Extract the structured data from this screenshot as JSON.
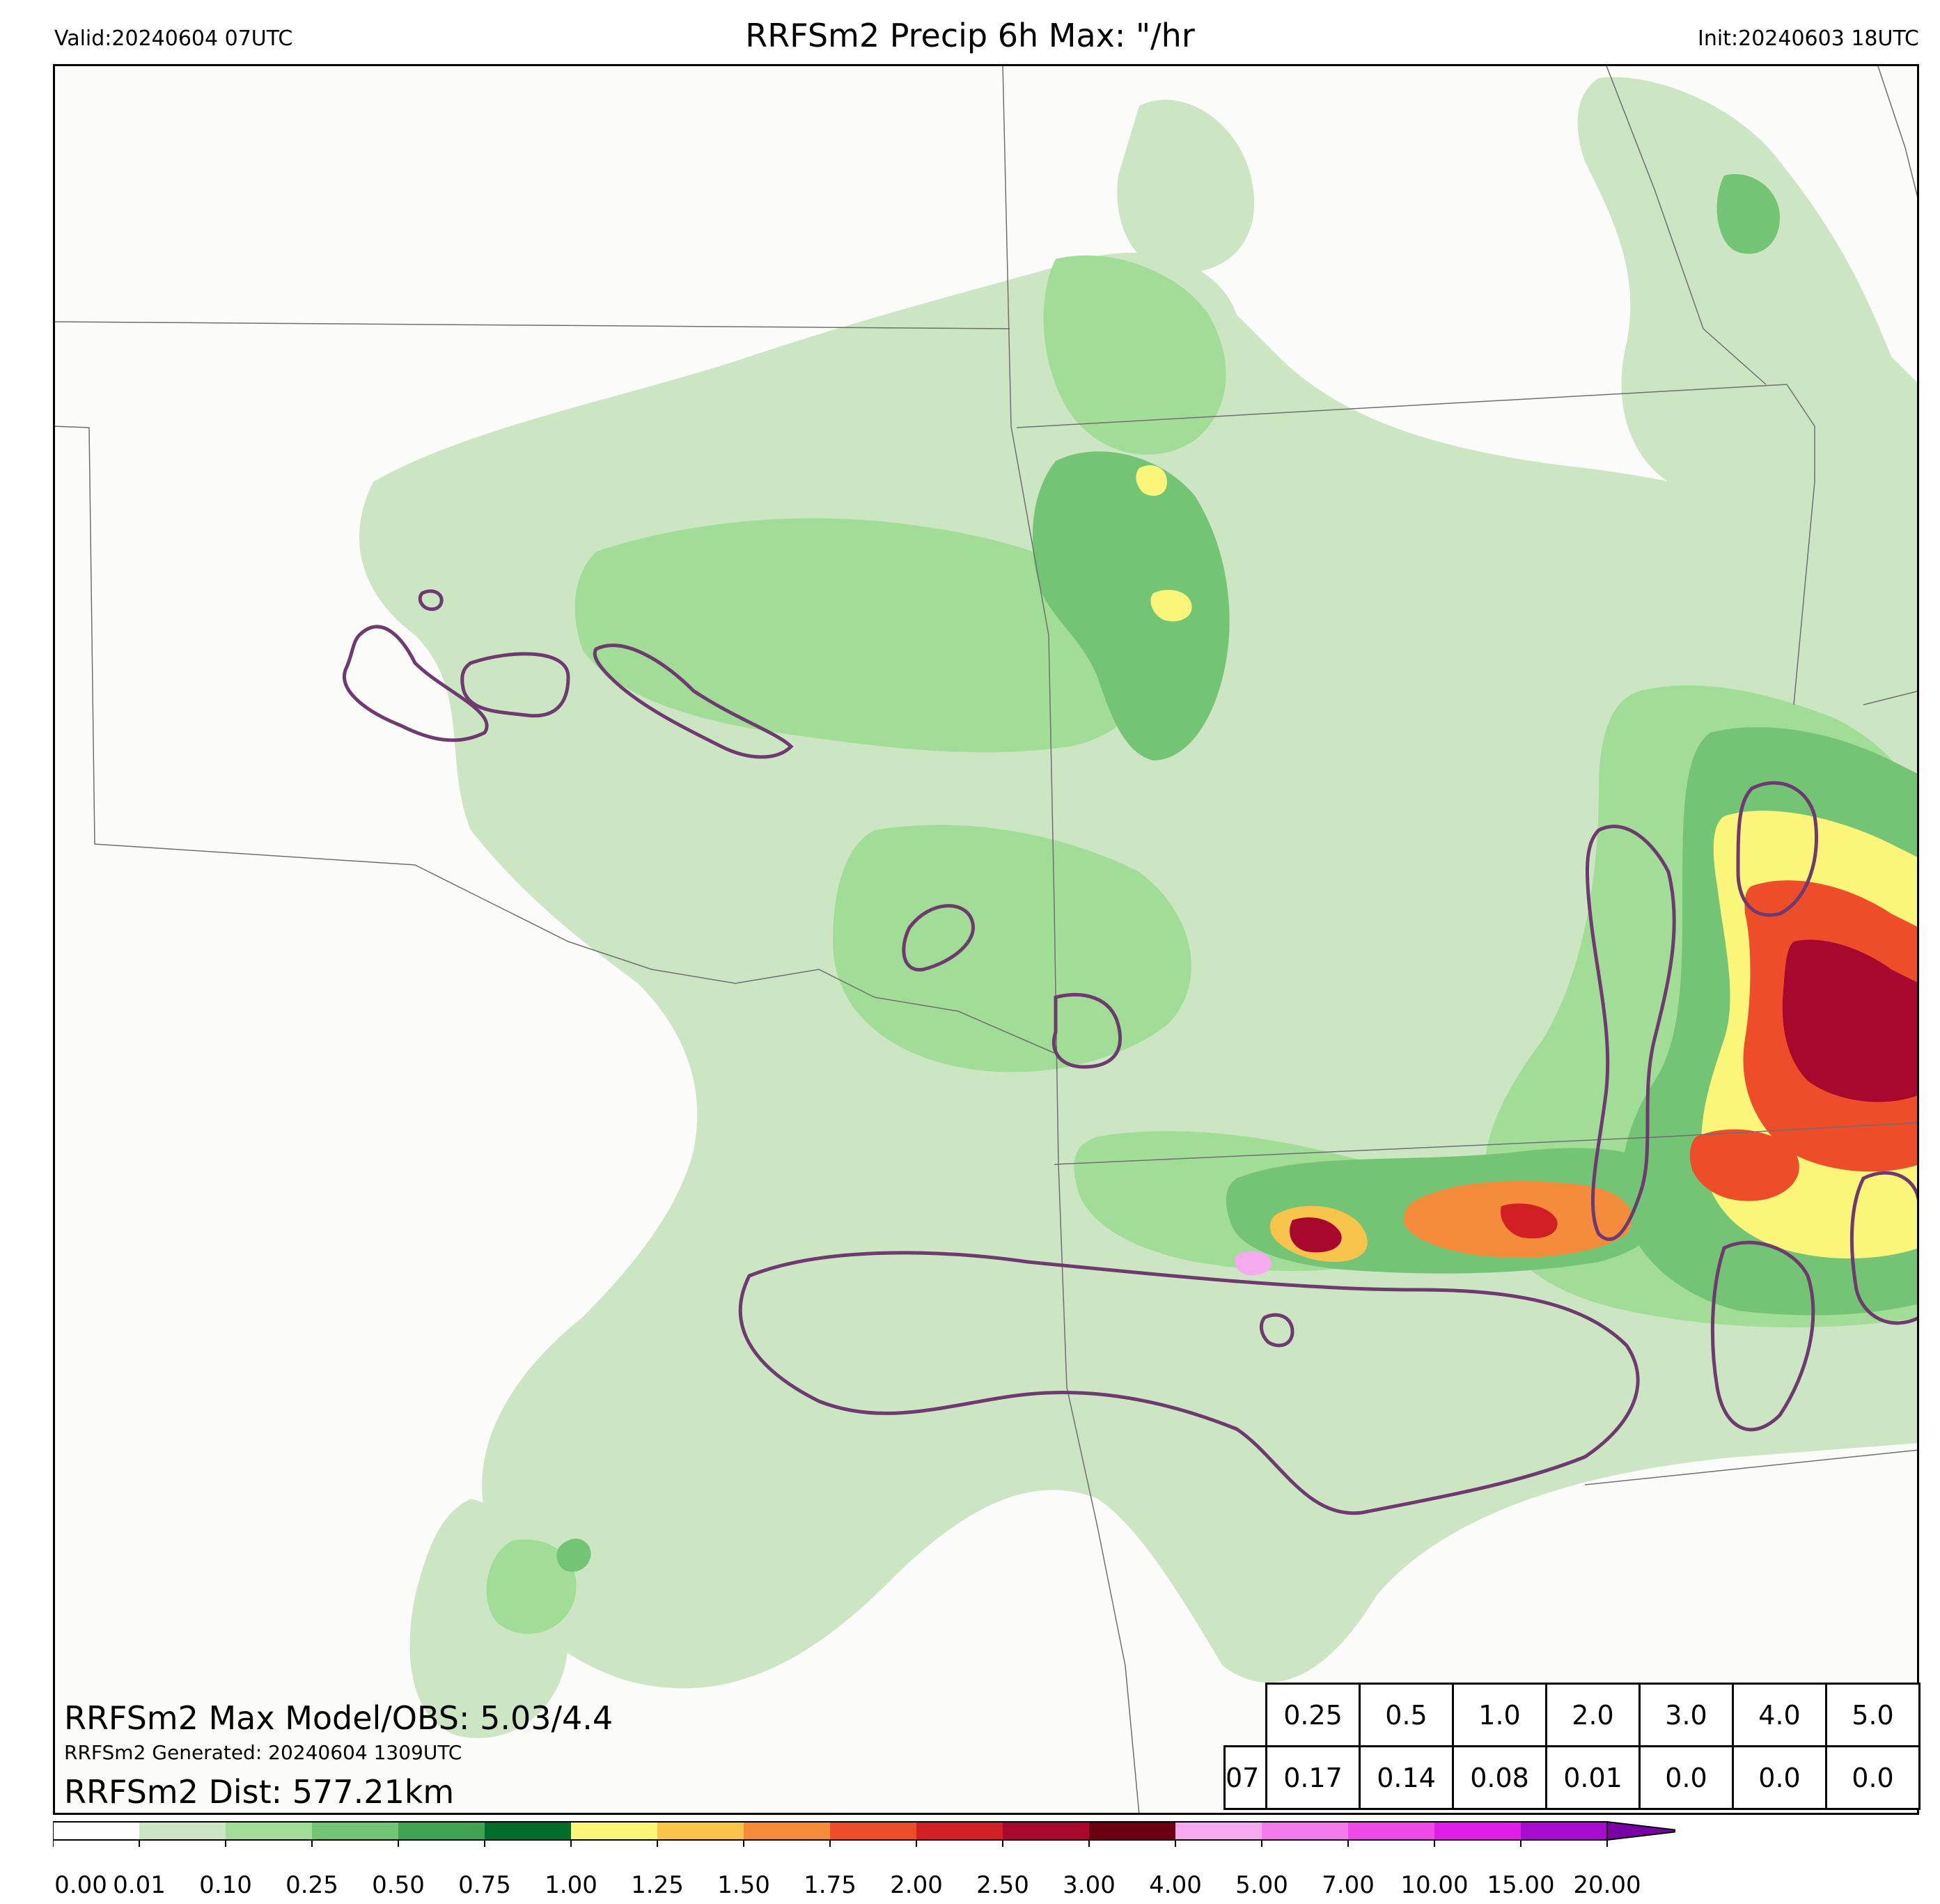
{
  "header": {
    "valid": "Valid:20240604 07UTC",
    "title": "RRFSm2 Precip 6h Max: \"/hr",
    "init": "Init:20240603 18UTC"
  },
  "annotations": {
    "max_model_obs": "RRFSm2 Max Model/OBS: 5.03/4.4",
    "generated": "RRFSm2 Generated: 20240604 1309UTC",
    "dist": "RRFSm2 Dist: 577.21km"
  },
  "threshold_table": {
    "thresholds": [
      "0.25",
      "0.5",
      "1.0",
      "2.0",
      "3.0",
      "4.0",
      "5.0"
    ],
    "hour": "07",
    "values": [
      "0.17",
      "0.14",
      "0.08",
      "0.01",
      "0.0",
      "0.0",
      "0.0"
    ]
  },
  "colorbar": {
    "ticks": [
      "0.00",
      "0.01",
      "0.10",
      "0.25",
      "0.50",
      "0.75",
      "1.00",
      "1.25",
      "1.50",
      "1.75",
      "2.00",
      "2.50",
      "3.00",
      "4.00",
      "5.00",
      "7.00",
      "10.00",
      "15.00",
      "20.00"
    ],
    "colors": [
      "#fdfdfd",
      "#cce6c4",
      "#a2dd98",
      "#74c476",
      "#41a352",
      "#006d2c",
      "#fbf67a",
      "#f9c44c",
      "#f58c3c",
      "#ee4d2a",
      "#d21f23",
      "#a8082d",
      "#6b0012",
      "#f5aaf0",
      "#f27cec",
      "#ee4ae6",
      "#e01ee8",
      "#a50ccb"
    ],
    "extend_color": "#7a00a5"
  },
  "map_colors": {
    "background": "#fbfbf9",
    "border": "#6f6f6f",
    "obs_contour": "#6e3a6f"
  }
}
